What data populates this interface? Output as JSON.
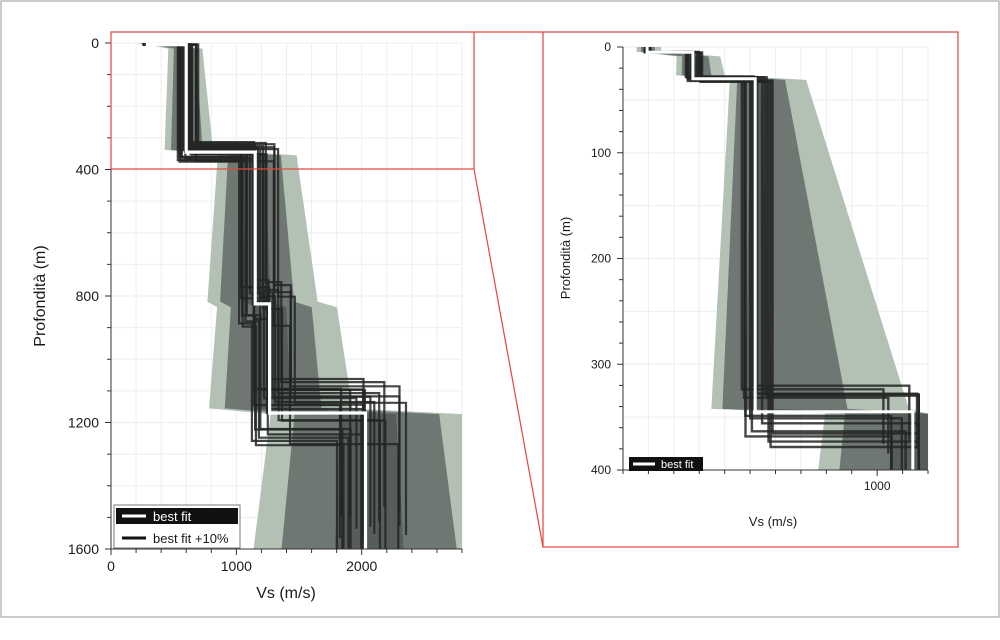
{
  "colors": {
    "light": "#b2c1b4",
    "mid": "#9aa59c",
    "dark": "#6f7772",
    "darker": "#575e5a",
    "profile": "#232625",
    "bestfit": "#ffffff",
    "zoom_box": "#e3473b"
  },
  "chart_data": [
    {
      "type": "line",
      "title": "",
      "xlabel": "Vs (m/s)",
      "ylabel": "Profondità (m)",
      "xlim": [
        0,
        2800
      ],
      "ylim": [
        1600,
        0
      ],
      "xticks": [
        0,
        1000,
        2000
      ],
      "yticks": [
        0,
        400,
        800,
        1200,
        1600
      ],
      "grid": true,
      "legend": {
        "placement": "bottom-left",
        "entries": [
          "best fit",
          "best fit +10%"
        ]
      },
      "series": [
        {
          "name": "best fit",
          "points": [
            [
              290,
              0
            ],
            [
              290,
              5
            ],
            [
              600,
              5
            ],
            [
              600,
              345
            ],
            [
              1150,
              345
            ],
            [
              1150,
              825
            ],
            [
              1265,
              825
            ],
            [
              1265,
              1170
            ],
            [
              2030,
              1170
            ],
            [
              2030,
              1600
            ]
          ]
        }
      ],
      "zoom_region": {
        "x": [
          0,
          2880
        ],
        "y": [
          0,
          400
        ]
      }
    },
    {
      "type": "line",
      "title": "",
      "xlabel": "Vs (m/s)",
      "ylabel": "Profondità (m)",
      "xlim": [
        0,
        1200
      ],
      "ylim": [
        400,
        0
      ],
      "xticks": [
        1000
      ],
      "yticks": [
        0,
        100,
        200,
        300,
        400
      ],
      "grid": true,
      "legend": {
        "placement": "bottom-left",
        "entries": [
          "best fit"
        ]
      },
      "series": [
        {
          "name": "best fit",
          "points": [
            [
              95,
              0
            ],
            [
              95,
              5
            ],
            [
              275,
              5
            ],
            [
              275,
              30
            ],
            [
              520,
              30
            ],
            [
              520,
              345
            ],
            [
              1140,
              345
            ],
            [
              1140,
              400
            ]
          ]
        }
      ]
    }
  ]
}
